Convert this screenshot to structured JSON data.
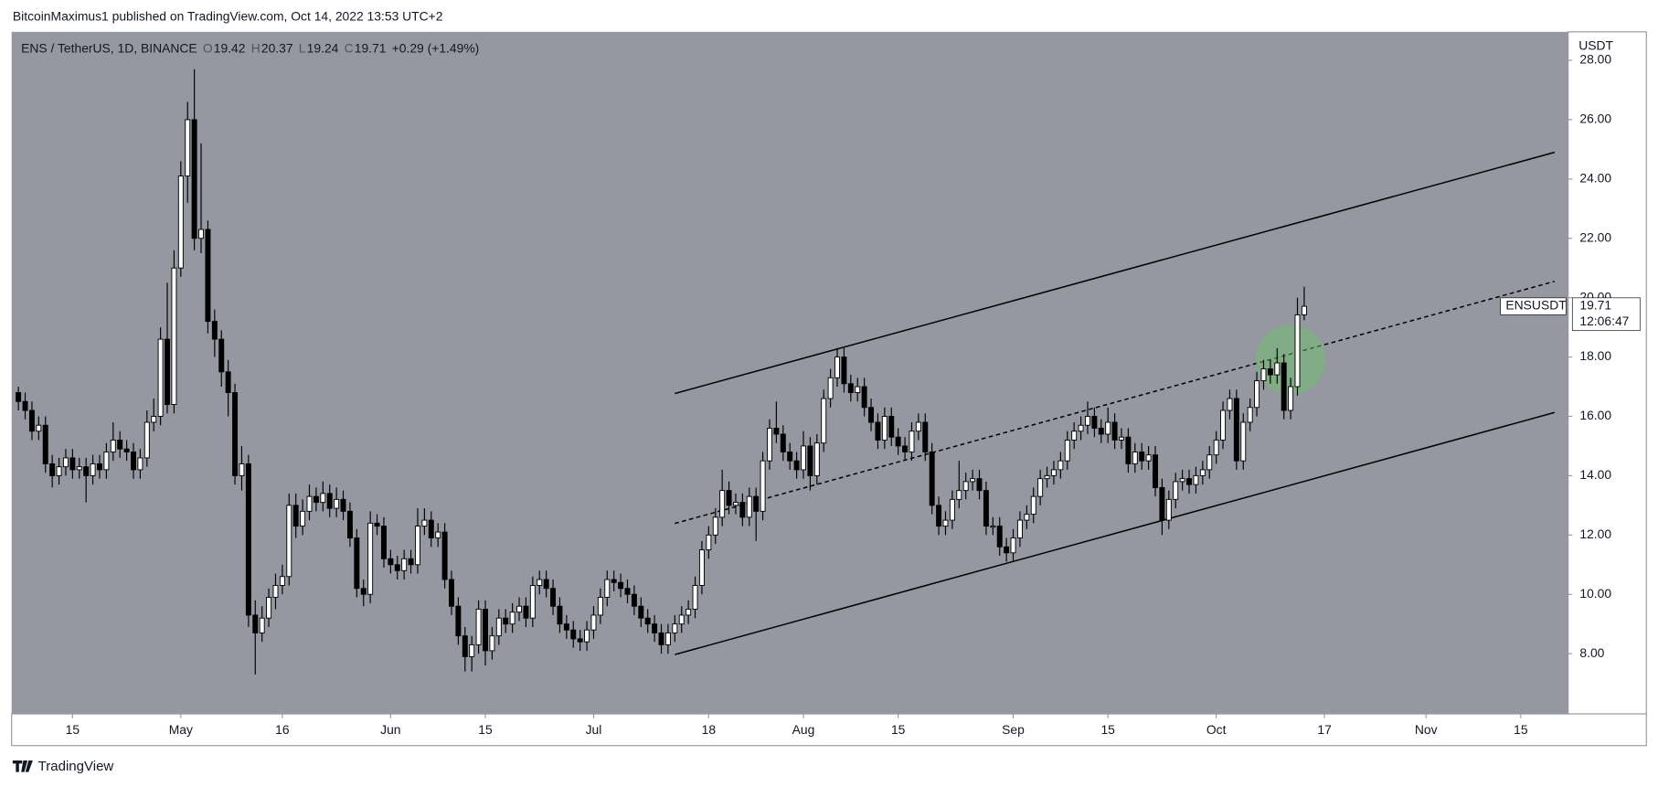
{
  "header": "BitcoinMaximus1 published on TradingView.com, Oct 14, 2022 13:53 UTC+2",
  "footer": "TradingView",
  "chart_data": {
    "type": "candlestick",
    "legend": {
      "symbol": "ENS / TetherUS, 1D, BINANCE",
      "open_label": "O",
      "open": 19.42,
      "high_label": "H",
      "high": 20.37,
      "low_label": "L",
      "low": 19.24,
      "close_label": "C",
      "close": 19.71,
      "change": "+0.29 (+1.49%)"
    },
    "symbol_tag": "ENSUSDT",
    "last_price": 19.71,
    "countdown": "12:06:47",
    "y_axis_label": "USDT",
    "background": "#9598a1",
    "up_color": "#ffffff",
    "down_color": "#000000",
    "xlim": [
      "04-06",
      "11-22"
    ],
    "xticks": [
      {
        "value": "04-15",
        "label": "15"
      },
      {
        "value": "05-01",
        "label": "May"
      },
      {
        "value": "05-16",
        "label": "16"
      },
      {
        "value": "06-01",
        "label": "Jun"
      },
      {
        "value": "06-15",
        "label": "15"
      },
      {
        "value": "07-01",
        "label": "Jul"
      },
      {
        "value": "07-18",
        "label": "18"
      },
      {
        "value": "08-01",
        "label": "Aug"
      },
      {
        "value": "08-15",
        "label": "15"
      },
      {
        "value": "09-01",
        "label": "Sep"
      },
      {
        "value": "09-15",
        "label": "15"
      },
      {
        "value": "10-01",
        "label": "Oct"
      },
      {
        "value": "10-17",
        "label": "17"
      },
      {
        "value": "11-01",
        "label": "Nov"
      },
      {
        "value": "11-15",
        "label": "15"
      }
    ],
    "ylim": [
      5.97,
      28.96
    ],
    "yticks": [
      {
        "value": 8,
        "label": "8.00"
      },
      {
        "value": 10,
        "label": "10.00"
      },
      {
        "value": 12,
        "label": "12.00"
      },
      {
        "value": 14,
        "label": "14.00"
      },
      {
        "value": 16,
        "label": "16.00"
      },
      {
        "value": 18,
        "label": "18.00"
      },
      {
        "value": 20,
        "label": "20.00"
      },
      {
        "value": 22,
        "label": "22.00"
      },
      {
        "value": 24,
        "label": "24.00"
      },
      {
        "value": 26,
        "label": "26.00"
      },
      {
        "value": 28,
        "label": "28.00"
      }
    ],
    "trend_lines": [
      {
        "style": "solid",
        "start": {
          "x": "07-13",
          "y": 16.77
        },
        "end": {
          "x": "11-20",
          "y": 24.9
        }
      },
      {
        "style": "dashed",
        "start": {
          "x": "07-13",
          "y": 12.39
        },
        "end": {
          "x": "11-20",
          "y": 20.55
        }
      },
      {
        "style": "solid",
        "start": {
          "x": "07-13",
          "y": 7.97
        },
        "end": {
          "x": "11-20",
          "y": 16.13
        }
      }
    ],
    "highlight": {
      "x": "10-12",
      "y": 17.9,
      "color": "#6fbf6a"
    },
    "x": [
      "04-07",
      "04-08",
      "04-09",
      "04-10",
      "04-11",
      "04-12",
      "04-13",
      "04-14",
      "04-15",
      "04-16",
      "04-17",
      "04-18",
      "04-19",
      "04-20",
      "04-21",
      "04-22",
      "04-23",
      "04-24",
      "04-25",
      "04-26",
      "04-27",
      "04-28",
      "04-29",
      "04-30",
      "05-01",
      "05-02",
      "05-03",
      "05-04",
      "05-05",
      "05-06",
      "05-07",
      "05-08",
      "05-09",
      "05-10",
      "05-11",
      "05-12",
      "05-13",
      "05-14",
      "05-15",
      "05-16",
      "05-17",
      "05-18",
      "05-19",
      "05-20",
      "05-21",
      "05-22",
      "05-23",
      "05-24",
      "05-25",
      "05-26",
      "05-27",
      "05-28",
      "05-29",
      "05-30",
      "05-31",
      "06-01",
      "06-02",
      "06-03",
      "06-04",
      "06-05",
      "06-06",
      "06-07",
      "06-08",
      "06-09",
      "06-10",
      "06-11",
      "06-12",
      "06-13",
      "06-14",
      "06-15",
      "06-16",
      "06-17",
      "06-18",
      "06-19",
      "06-20",
      "06-21",
      "06-22",
      "06-23",
      "06-24",
      "06-25",
      "06-26",
      "06-27",
      "06-28",
      "06-29",
      "06-30",
      "07-01",
      "07-02",
      "07-03",
      "07-04",
      "07-05",
      "07-06",
      "07-07",
      "07-08",
      "07-09",
      "07-10",
      "07-11",
      "07-12",
      "07-13",
      "07-14",
      "07-15",
      "07-16",
      "07-17",
      "07-18",
      "07-19",
      "07-20",
      "07-21",
      "07-22",
      "07-23",
      "07-24",
      "07-25",
      "07-26",
      "07-27",
      "07-28",
      "07-29",
      "07-30",
      "07-31",
      "08-01",
      "08-02",
      "08-03",
      "08-04",
      "08-05",
      "08-06",
      "08-07",
      "08-08",
      "08-09",
      "08-10",
      "08-11",
      "08-12",
      "08-13",
      "08-14",
      "08-15",
      "08-16",
      "08-17",
      "08-18",
      "08-19",
      "08-20",
      "08-21",
      "08-22",
      "08-23",
      "08-24",
      "08-25",
      "08-26",
      "08-27",
      "08-28",
      "08-29",
      "08-30",
      "08-31",
      "09-01",
      "09-02",
      "09-03",
      "09-04",
      "09-05",
      "09-06",
      "09-07",
      "09-08",
      "09-09",
      "09-10",
      "09-11",
      "09-12",
      "09-13",
      "09-14",
      "09-15",
      "09-16",
      "09-17",
      "09-18",
      "09-19",
      "09-20",
      "09-21",
      "09-22",
      "09-23",
      "09-24",
      "09-25",
      "09-26",
      "09-27",
      "09-28",
      "09-29",
      "09-30",
      "10-01",
      "10-02",
      "10-03",
      "10-04",
      "10-05",
      "10-06",
      "10-07",
      "10-08",
      "10-09",
      "10-10",
      "10-11",
      "10-12",
      "10-13",
      "10-14"
    ],
    "open": [
      16.8,
      16.5,
      16.2,
      15.5,
      15.7,
      14.4,
      14.0,
      14.3,
      14.6,
      14.2,
      14.3,
      14.0,
      14.4,
      14.2,
      14.8,
      15.2,
      14.9,
      14.8,
      14.2,
      14.6,
      15.8,
      16.0,
      18.6,
      16.4,
      21.0,
      24.1,
      26.0,
      22.0,
      22.3,
      19.2,
      18.6,
      17.5,
      16.8,
      14.0,
      14.4,
      9.3,
      8.7,
      9.2,
      9.9,
      10.3,
      10.6,
      13.0,
      12.3,
      12.8,
      13.3,
      13.1,
      13.4,
      12.9,
      13.2,
      12.8,
      11.9,
      10.2,
      10.0,
      12.4,
      12.3,
      11.2,
      11.0,
      10.8,
      11.2,
      11.0,
      12.3,
      12.5,
      11.9,
      12.1,
      10.5,
      9.6,
      8.6,
      7.9,
      8.3,
      9.5,
      8.1,
      8.6,
      9.2,
      9.0,
      9.4,
      9.6,
      9.2,
      10.3,
      10.5,
      10.2,
      9.6,
      9.0,
      8.8,
      8.5,
      8.4,
      8.8,
      9.3,
      9.9,
      10.5,
      10.4,
      10.2,
      10.0,
      9.6,
      9.2,
      9.0,
      8.7,
      8.3,
      8.7,
      9.0,
      9.3,
      9.5,
      10.3,
      11.5,
      12.0,
      12.6,
      13.5,
      13.0,
      13.1,
      12.6,
      13.3,
      12.8,
      14.5,
      15.6,
      15.4,
      14.8,
      14.5,
      14.2,
      15.0,
      14.0,
      15.1,
      16.6,
      17.3,
      18.0,
      17.1,
      16.8,
      17.0,
      16.3,
      15.8,
      15.2,
      16.0,
      15.3,
      15.0,
      14.8,
      15.5,
      15.8,
      14.8,
      13.0,
      12.3,
      12.5,
      13.2,
      13.5,
      13.8,
      13.9,
      13.5,
      12.3,
      12.3,
      11.6,
      11.4,
      11.9,
      12.5,
      12.7,
      13.3,
      13.9,
      14.0,
      14.2,
      14.5,
      15.2,
      15.5,
      15.7,
      16.0,
      15.6,
      15.4,
      15.8,
      15.2,
      15.3,
      14.4,
      14.8,
      14.5,
      14.7,
      13.6,
      12.5,
      13.2,
      13.8,
      13.9,
      13.7,
      14.0,
      14.2,
      14.7,
      15.2,
      16.2,
      16.6,
      14.5,
      15.8,
      16.3,
      17.2,
      17.6,
      17.4,
      17.8,
      16.2,
      17.0,
      19.42
    ],
    "high": [
      17.0,
      16.8,
      16.5,
      16.0,
      16.0,
      14.7,
      14.6,
      14.9,
      14.9,
      14.6,
      14.6,
      14.7,
      14.7,
      15.1,
      15.8,
      15.5,
      15.2,
      15.1,
      14.9,
      16.2,
      16.6,
      19.0,
      20.5,
      21.6,
      24.6,
      26.6,
      27.7,
      25.2,
      22.6,
      19.6,
      18.9,
      17.9,
      17.1,
      15.0,
      14.7,
      9.8,
      9.6,
      10.2,
      10.7,
      11.0,
      13.4,
      13.4,
      13.2,
      13.7,
      13.6,
      13.8,
      13.7,
      13.6,
      13.5,
      13.1,
      12.2,
      10.5,
      12.8,
      12.7,
      12.6,
      11.5,
      11.3,
      11.5,
      11.5,
      12.9,
      12.9,
      12.8,
      12.4,
      12.4,
      10.8,
      9.9,
      8.9,
      8.6,
      9.8,
      9.8,
      8.9,
      9.5,
      9.5,
      9.7,
      9.9,
      9.9,
      10.6,
      10.8,
      10.8,
      10.5,
      9.9,
      9.3,
      9.1,
      8.8,
      9.1,
      9.6,
      10.2,
      10.8,
      10.8,
      10.7,
      10.5,
      10.3,
      9.9,
      9.5,
      9.3,
      9.0,
      9.0,
      9.3,
      9.6,
      9.8,
      10.6,
      11.8,
      12.3,
      12.9,
      14.2,
      13.8,
      13.4,
      13.4,
      13.6,
      13.6,
      14.8,
      15.9,
      16.5,
      15.7,
      15.1,
      14.8,
      15.5,
      15.3,
      15.4,
      16.9,
      17.6,
      18.3,
      18.3,
      17.4,
      17.3,
      17.3,
      16.6,
      16.1,
      16.3,
      16.3,
      15.6,
      15.3,
      15.8,
      16.1,
      16.1,
      15.1,
      13.3,
      12.8,
      13.5,
      14.5,
      14.1,
      14.2,
      14.2,
      13.8,
      12.6,
      12.6,
      11.9,
      12.2,
      12.8,
      13.0,
      13.6,
      14.2,
      14.3,
      14.5,
      14.8,
      15.5,
      15.8,
      16.0,
      16.5,
      16.3,
      15.9,
      16.3,
      16.1,
      15.6,
      15.6,
      15.1,
      15.1,
      15.0,
      15.0,
      13.9,
      13.5,
      14.1,
      14.2,
      14.2,
      14.3,
      14.5,
      15.0,
      15.5,
      16.5,
      16.9,
      16.9,
      16.1,
      16.6,
      17.5,
      17.9,
      17.9,
      18.3,
      18.1,
      17.3,
      20.0,
      20.37
    ],
    "low": [
      16.2,
      15.9,
      15.2,
      15.2,
      14.1,
      13.6,
      13.7,
      14.0,
      13.9,
      13.9,
      13.1,
      13.7,
      13.9,
      13.9,
      14.5,
      14.6,
      14.5,
      13.9,
      13.9,
      14.3,
      15.5,
      15.7,
      16.1,
      16.1,
      20.7,
      23.2,
      21.6,
      21.5,
      18.8,
      18.0,
      17.0,
      16.0,
      13.7,
      13.5,
      8.9,
      7.3,
      8.4,
      8.9,
      9.5,
      10.0,
      10.3,
      11.9,
      12.0,
      12.5,
      12.8,
      12.8,
      12.6,
      12.6,
      12.5,
      11.6,
      9.9,
      9.6,
      9.7,
      12.0,
      10.9,
      10.7,
      10.5,
      10.5,
      10.7,
      10.7,
      12.0,
      11.6,
      11.6,
      10.2,
      9.3,
      8.3,
      7.4,
      7.4,
      8.0,
      7.6,
      7.8,
      8.3,
      8.7,
      8.7,
      9.1,
      8.9,
      8.9,
      10.0,
      9.9,
      9.3,
      8.7,
      8.5,
      8.2,
      8.1,
      8.1,
      8.5,
      9.0,
      9.6,
      10.1,
      9.9,
      9.7,
      9.3,
      8.9,
      8.7,
      8.4,
      8.0,
      8.0,
      8.4,
      8.7,
      9.0,
      9.2,
      10.0,
      11.2,
      11.7,
      12.3,
      12.7,
      12.7,
      12.3,
      12.3,
      11.8,
      12.5,
      14.2,
      15.1,
      14.5,
      14.2,
      13.9,
      13.9,
      13.5,
      13.7,
      14.8,
      16.3,
      17.0,
      16.8,
      16.5,
      16.5,
      16.0,
      15.5,
      14.9,
      14.9,
      15.0,
      14.7,
      14.5,
      14.5,
      15.2,
      14.5,
      12.7,
      12.0,
      12.0,
      12.2,
      12.9,
      13.2,
      13.5,
      13.2,
      12.0,
      12.0,
      11.3,
      11.1,
      11.1,
      11.6,
      12.2,
      12.4,
      13.0,
      13.6,
      13.7,
      13.9,
      14.2,
      14.9,
      15.2,
      15.4,
      15.3,
      15.1,
      15.1,
      14.9,
      14.9,
      14.1,
      14.1,
      14.2,
      14.2,
      13.3,
      12.0,
      12.2,
      12.9,
      13.5,
      13.4,
      13.4,
      13.7,
      13.9,
      14.4,
      14.9,
      15.9,
      14.2,
      14.2,
      15.5,
      16.0,
      16.9,
      17.1,
      17.1,
      15.9,
      15.9,
      16.7,
      19.24
    ],
    "close": [
      16.5,
      16.2,
      15.5,
      15.7,
      14.4,
      14.0,
      14.3,
      14.6,
      14.2,
      14.3,
      14.0,
      14.4,
      14.2,
      14.8,
      15.2,
      14.9,
      14.8,
      14.2,
      14.6,
      15.8,
      16.0,
      18.6,
      16.4,
      21.0,
      24.1,
      26.0,
      22.0,
      22.3,
      19.2,
      18.6,
      17.5,
      16.8,
      14.0,
      14.4,
      9.3,
      8.7,
      9.2,
      9.9,
      10.3,
      10.6,
      13.0,
      12.3,
      12.8,
      13.3,
      13.1,
      13.4,
      12.9,
      13.2,
      12.8,
      11.9,
      10.2,
      10.0,
      12.4,
      12.3,
      11.2,
      11.0,
      10.8,
      11.2,
      11.0,
      12.3,
      12.5,
      11.9,
      12.1,
      10.5,
      9.6,
      8.6,
      7.9,
      8.3,
      9.5,
      8.1,
      8.6,
      9.2,
      9.0,
      9.4,
      9.6,
      9.2,
      10.3,
      10.5,
      10.2,
      9.6,
      9.0,
      8.8,
      8.5,
      8.4,
      8.8,
      9.3,
      9.9,
      10.5,
      10.4,
      10.2,
      10.0,
      9.6,
      9.2,
      9.0,
      8.7,
      8.3,
      8.7,
      9.0,
      9.3,
      9.5,
      10.3,
      11.5,
      12.0,
      12.6,
      13.5,
      13.0,
      13.1,
      12.6,
      13.3,
      12.8,
      14.5,
      15.6,
      15.4,
      14.8,
      14.5,
      14.2,
      15.0,
      14.0,
      15.1,
      16.6,
      17.3,
      18.0,
      17.1,
      16.8,
      17.0,
      16.3,
      15.8,
      15.2,
      16.0,
      15.3,
      15.0,
      14.8,
      15.5,
      15.8,
      14.8,
      13.0,
      12.3,
      12.5,
      13.2,
      13.5,
      13.8,
      13.9,
      13.5,
      12.3,
      12.3,
      11.6,
      11.4,
      11.9,
      12.5,
      12.7,
      13.3,
      13.9,
      14.0,
      14.2,
      14.5,
      15.2,
      15.5,
      15.7,
      16.0,
      15.6,
      15.4,
      15.8,
      15.2,
      15.3,
      14.4,
      14.8,
      14.5,
      14.7,
      13.6,
      12.5,
      13.2,
      13.8,
      13.9,
      13.7,
      14.0,
      14.2,
      14.7,
      15.2,
      16.2,
      16.6,
      14.5,
      15.8,
      16.3,
      17.2,
      17.6,
      17.4,
      17.8,
      16.2,
      17.0,
      19.42,
      19.71
    ]
  }
}
